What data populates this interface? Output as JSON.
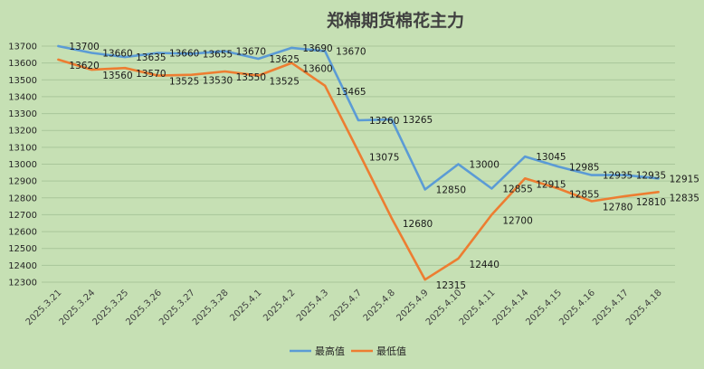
{
  "chart_data": {
    "type": "line",
    "title": "郑棉期货棉花主力",
    "xlabel": "",
    "ylabel": "",
    "ylim": [
      12300,
      13700
    ],
    "ytick_step": 100,
    "grid": "horizontal",
    "legend_position": "bottom",
    "categories": [
      "2025.3.21",
      "2025.3.24",
      "2025.3.25",
      "2025.3.26",
      "2025.3.27",
      "2025.3.28",
      "2025.4.1",
      "2025.4.2",
      "2025.4.3",
      "2025.4.7",
      "2025.4.8",
      "2025.4.9",
      "2025.4.10",
      "2025.4.11",
      "2025.4.14",
      "2025.4.15",
      "2025.4.16",
      "2025.4.17",
      "2025.4.18"
    ],
    "series": [
      {
        "name": "最高值",
        "color": "#5b9bd5",
        "values": [
          13700,
          13660,
          13635,
          13660,
          13655,
          13670,
          13625,
          13690,
          13670,
          13260,
          13265,
          12850,
          13000,
          12855,
          13045,
          12985,
          12935,
          12935,
          12915
        ]
      },
      {
        "name": "最低值",
        "color": "#ed7d31",
        "values": [
          13620,
          13560,
          13570,
          13525,
          13530,
          13550,
          13525,
          13600,
          13465,
          13075,
          12680,
          12315,
          12440,
          12700,
          12915,
          12855,
          12780,
          12810,
          12835
        ]
      }
    ]
  }
}
